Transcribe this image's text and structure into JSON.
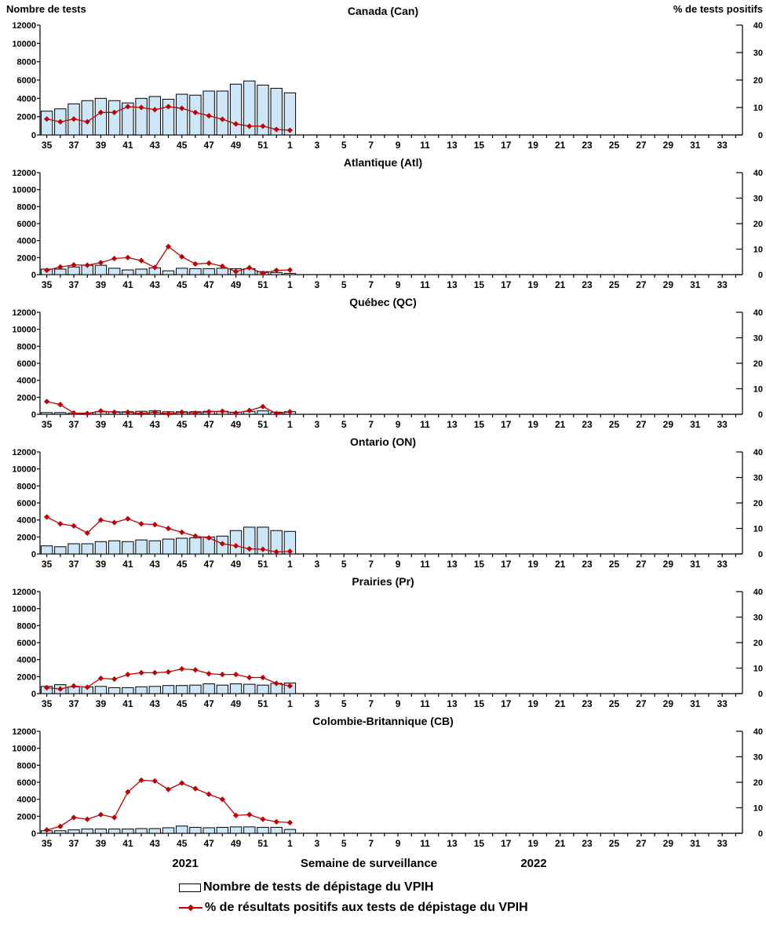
{
  "page": {
    "left_axis_title": "Nombre de tests",
    "right_axis_title": "% de tests positifs",
    "x_axis_title": "Semaine de surveillance",
    "year_left": "2021",
    "year_right": "2022",
    "legend_bar_label": "Nombre de tests de dépistage du VPIH",
    "legend_line_label": "% de résultats positifs aux tests de dépistage du VPIH",
    "colors": {
      "bar_fill": "#CDE6F8",
      "bar_stroke": "#000000",
      "line": "#C00000",
      "text": "#000000"
    }
  },
  "chart_axes": {
    "left_ylim": [
      0,
      12000
    ],
    "left_ticks": [
      0,
      2000,
      4000,
      6000,
      8000,
      10000,
      12000
    ],
    "right_ylim": [
      0,
      40
    ],
    "right_ticks": [
      0,
      10,
      20,
      30,
      40
    ],
    "x_week_order": [
      35,
      36,
      37,
      38,
      39,
      40,
      41,
      42,
      43,
      44,
      45,
      46,
      47,
      48,
      49,
      50,
      51,
      52,
      1,
      2,
      3,
      4,
      5,
      6,
      7,
      8,
      9,
      10,
      11,
      12,
      13,
      14,
      15,
      16,
      17,
      18,
      19,
      20,
      21,
      22,
      23,
      24,
      25,
      26,
      27,
      28,
      29,
      30,
      31,
      32,
      33,
      34
    ],
    "x_tick_labels": [
      35,
      37,
      39,
      41,
      43,
      45,
      47,
      49,
      51,
      1,
      3,
      5,
      7,
      9,
      11,
      13,
      15,
      17,
      19,
      21,
      23,
      25,
      27,
      29,
      31,
      33
    ],
    "grid": false,
    "legend_position": "bottom-left"
  },
  "chart_data": [
    {
      "type": "bar+line",
      "title": "Canada (Can)",
      "weeks": [
        35,
        36,
        37,
        38,
        39,
        40,
        41,
        42,
        43,
        44,
        45,
        46,
        47,
        48,
        49,
        50,
        51,
        52,
        1
      ],
      "tests": [
        2600,
        2850,
        3400,
        3750,
        4000,
        3750,
        3500,
        4000,
        4200,
        3900,
        4450,
        4350,
        4800,
        4800,
        5550,
        5900,
        5450,
        5100,
        4600
      ],
      "pct_positive": [
        5.8,
        4.8,
        5.8,
        4.8,
        8.2,
        8.2,
        10.3,
        10.0,
        9.2,
        10.3,
        9.7,
        8.2,
        7.0,
        5.7,
        4.0,
        3.2,
        3.2,
        2.0,
        1.7
      ]
    },
    {
      "type": "bar+line",
      "title": "Atlantique (Atl)",
      "weeks": [
        35,
        36,
        37,
        38,
        39,
        40,
        41,
        42,
        43,
        44,
        45,
        46,
        47,
        48,
        49,
        50,
        51,
        52,
        1
      ],
      "tests": [
        650,
        650,
        900,
        1100,
        1100,
        750,
        550,
        650,
        800,
        450,
        750,
        700,
        700,
        750,
        700,
        700,
        350,
        250,
        150
      ],
      "pct_positive": [
        1.7,
        3.0,
        3.8,
        3.7,
        4.7,
        6.3,
        6.7,
        5.5,
        2.8,
        11.0,
        7.0,
        4.2,
        4.5,
        3.3,
        1.2,
        2.7,
        0.5,
        1.7,
        1.8
      ]
    },
    {
      "type": "bar+line",
      "title": "Québec (QC)",
      "weeks": [
        35,
        36,
        37,
        38,
        39,
        40,
        41,
        42,
        43,
        44,
        45,
        46,
        47,
        48,
        49,
        50,
        51,
        52,
        1
      ],
      "tests": [
        200,
        200,
        150,
        150,
        300,
        300,
        300,
        350,
        400,
        300,
        300,
        300,
        350,
        350,
        250,
        350,
        400,
        250,
        300
      ],
      "pct_positive": [
        5.0,
        3.8,
        0.5,
        0.3,
        1.3,
        0.8,
        0.8,
        0.3,
        0.8,
        0.2,
        0.8,
        0.5,
        1.0,
        1.2,
        0.5,
        1.5,
        3.0,
        0.3,
        1.0
      ]
    },
    {
      "type": "bar+line",
      "title": "Ontario (ON)",
      "weeks": [
        35,
        36,
        37,
        38,
        39,
        40,
        41,
        42,
        43,
        44,
        45,
        46,
        47,
        48,
        49,
        50,
        51,
        52,
        1
      ],
      "tests": [
        950,
        850,
        1200,
        1200,
        1450,
        1550,
        1450,
        1650,
        1550,
        1750,
        1850,
        1900,
        2000,
        2100,
        2750,
        3150,
        3150,
        2750,
        2650
      ],
      "pct_positive": [
        14.5,
        11.8,
        11.0,
        8.2,
        13.3,
        12.3,
        13.8,
        11.8,
        11.5,
        10.0,
        8.5,
        7.0,
        6.3,
        4.0,
        3.2,
        2.0,
        1.8,
        0.8,
        1.0
      ]
    },
    {
      "type": "bar+line",
      "title": "Prairies (Pr)",
      "weeks": [
        35,
        36,
        37,
        38,
        39,
        40,
        41,
        42,
        43,
        44,
        45,
        46,
        47,
        48,
        49,
        50,
        51,
        52,
        1
      ],
      "tests": [
        850,
        1050,
        800,
        800,
        850,
        700,
        700,
        800,
        850,
        950,
        950,
        1000,
        1150,
        1000,
        1150,
        1100,
        1000,
        1200,
        1250
      ],
      "pct_positive": [
        2.3,
        1.8,
        3.0,
        2.5,
        6.0,
        5.7,
        7.5,
        8.2,
        8.2,
        8.5,
        9.7,
        9.3,
        7.8,
        7.5,
        7.5,
        6.3,
        6.3,
        4.0,
        3.0
      ]
    },
    {
      "type": "bar+line",
      "title": "Colombie-Britannique (CB)",
      "weeks": [
        35,
        36,
        37,
        38,
        39,
        40,
        41,
        42,
        43,
        44,
        45,
        46,
        47,
        48,
        49,
        50,
        51,
        52,
        1
      ],
      "tests": [
        300,
        300,
        400,
        500,
        500,
        500,
        500,
        550,
        550,
        650,
        850,
        700,
        650,
        700,
        750,
        750,
        700,
        700,
        450
      ],
      "pct_positive": [
        1.3,
        2.7,
        6.2,
        5.5,
        7.3,
        6.2,
        16.2,
        20.8,
        20.5,
        17.2,
        19.7,
        17.5,
        15.3,
        13.3,
        7.0,
        7.3,
        5.5,
        4.5,
        4.2
      ]
    }
  ]
}
